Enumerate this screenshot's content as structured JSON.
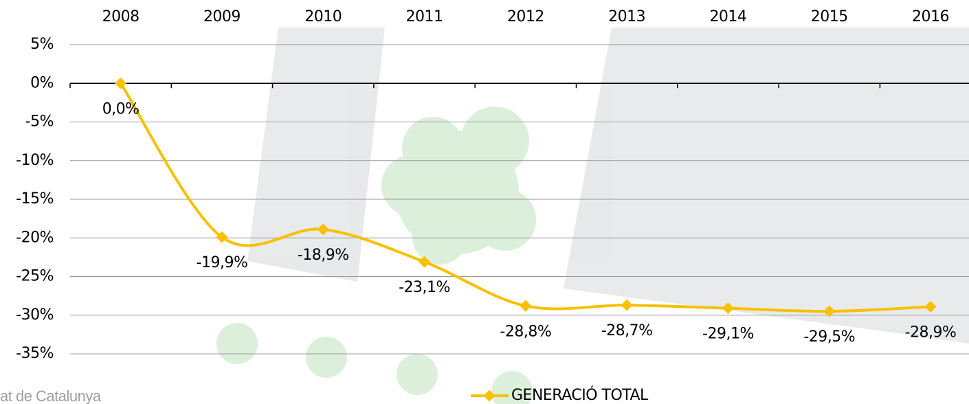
{
  "chart_data": {
    "type": "line",
    "categories": [
      "2008",
      "2009",
      "2010",
      "2011",
      "2012",
      "2013",
      "2014",
      "2015",
      "2016"
    ],
    "series": [
      {
        "name": "GENERACIÓ TOTAL",
        "color": "#f7c000",
        "values": [
          0,
          -19.9,
          -18.9,
          -23.1,
          -28.8,
          -28.7,
          -29.1,
          -29.5,
          -28.9
        ],
        "value_labels": [
          "0,0%",
          "-19,9%",
          "-18,9%",
          "-23,1%",
          "-28,8%",
          "-28,7%",
          "-29,1%",
          "-29,5%",
          "-28,9%"
        ]
      }
    ],
    "ylim": [
      -35,
      5
    ],
    "yticks": [
      {
        "value": 5,
        "label": "5%"
      },
      {
        "value": 0,
        "label": "0%"
      },
      {
        "value": -5,
        "label": "-5%"
      },
      {
        "value": -10,
        "label": "-10%"
      },
      {
        "value": -15,
        "label": "-15%"
      },
      {
        "value": -20,
        "label": "-20%"
      },
      {
        "value": -25,
        "label": "-25%"
      },
      {
        "value": -30,
        "label": "-30%"
      },
      {
        "value": -35,
        "label": "-35%"
      }
    ],
    "grid": true,
    "legend": "bottom",
    "watermark": "at de Catalunya"
  }
}
